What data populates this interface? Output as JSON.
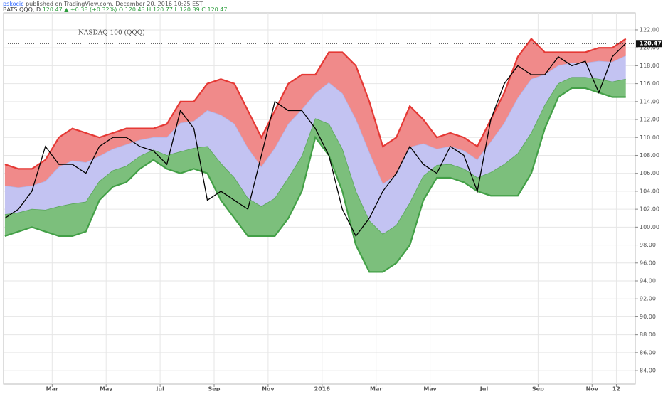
{
  "header": {
    "author": "pskocic",
    "published": "published on TradingView.com, December 20, 2016 10:25 EST",
    "symbol": "BATS:QQQ, D",
    "quote": "120.47 ▲ +0.38 (+0.32%)",
    "ohlc": "O:120.43 H:120.77 L:120.39 C:120.47"
  },
  "chart_data": {
    "type": "band-line",
    "title": "NASDAQ 100 (QQQ)",
    "x": [
      0.25,
      0.75,
      1.25,
      1.75,
      2.25,
      2.75,
      3.25,
      3.75,
      4.25,
      4.75,
      5.25,
      5.75,
      6.25,
      6.75,
      7.25,
      7.75,
      8.25,
      8.75,
      9.25,
      9.75,
      10.25,
      10.75,
      11.25,
      11.75,
      12.25,
      12.75,
      13.25,
      13.75,
      14.25,
      14.75,
      15.25,
      15.75,
      16.25,
      16.75,
      17.25,
      17.75,
      18.25,
      18.75,
      19.25,
      19.75,
      20.25,
      20.75,
      21.25,
      21.75,
      22.25,
      22.75,
      23.25
    ],
    "series": [
      {
        "color": "#e53935",
        "fill": "#f08a8a",
        "values": [
          107,
          106.5,
          106.5,
          107.5,
          110,
          111,
          110.5,
          110,
          110.5,
          111,
          111,
          111,
          111.5,
          114,
          114,
          116,
          116.5,
          116,
          113,
          110,
          113,
          116,
          117,
          117,
          119.5,
          119.5,
          118,
          114,
          109,
          110,
          113.5,
          112,
          110,
          110.5,
          110,
          109,
          112,
          115,
          119,
          121,
          119.5,
          119.5,
          119.5,
          119.5,
          120,
          120,
          121
        ]
      },
      {
        "color": "#b3b3e6",
        "fill": "#c3c3f2",
        "values": [
          104.6,
          104.4,
          104.6,
          105.1,
          106.7,
          107.4,
          107.2,
          107.9,
          108.7,
          109.2,
          109.7,
          110,
          110,
          111.6,
          111.8,
          113,
          112.5,
          111.5,
          108.8,
          106.7,
          108.8,
          111.5,
          113.1,
          114.9,
          116.1,
          114.9,
          112,
          108.3,
          104.8,
          105.8,
          108.9,
          109.3,
          108.7,
          109,
          108.5,
          107.5,
          109.5,
          111.6,
          114.4,
          116.5,
          117,
          118,
          118.3,
          118.3,
          118.5,
          118.4,
          119.1
        ]
      },
      {
        "color": "#5aa65a",
        "fill": "#7cbf7c",
        "values": [
          101.4,
          101.6,
          102,
          101.9,
          102.3,
          102.6,
          102.8,
          105.1,
          106.3,
          106.8,
          107.9,
          108.6,
          108,
          108.4,
          108.8,
          109,
          107.1,
          105.5,
          103.2,
          102.3,
          103.2,
          105.5,
          107.9,
          112.1,
          111.5,
          108.7,
          104,
          100.7,
          99.2,
          100.2,
          102.7,
          105.7,
          106.9,
          107,
          106.5,
          105.5,
          106.1,
          107,
          108.2,
          110.5,
          113.6,
          116,
          116.7,
          116.7,
          116.5,
          116.2,
          116.5
        ]
      },
      {
        "color": "#43a047",
        "values": [
          99,
          99.5,
          100,
          99.5,
          99,
          99,
          99.5,
          103,
          104.5,
          105,
          106.5,
          107.5,
          106.5,
          106,
          106.5,
          106,
          103,
          101,
          99,
          99,
          99,
          101,
          104,
          110,
          108,
          104,
          98,
          95,
          95,
          96,
          98,
          103,
          105.5,
          105.5,
          105,
          104,
          103.5,
          103.5,
          103.5,
          106,
          111,
          114.5,
          115.5,
          115.5,
          115,
          114.5,
          114.5
        ]
      },
      {
        "color": "#000000",
        "values": [
          101,
          102,
          104,
          109,
          107,
          107,
          106,
          109,
          110,
          110,
          109,
          108.5,
          107,
          113,
          111,
          103,
          104,
          103,
          102,
          108,
          114,
          113,
          113,
          111,
          108,
          102,
          99,
          101,
          104,
          106,
          109,
          107,
          106,
          109,
          108,
          104,
          112,
          116,
          118,
          117,
          117,
          119,
          118,
          118.5,
          115,
          119,
          120.5
        ]
      }
    ],
    "xlim": [
      0.2,
      23.6
    ],
    "xticks": [
      {
        "value": 2,
        "label": "Mar"
      },
      {
        "value": 4,
        "label": "May"
      },
      {
        "value": 6,
        "label": "Jul"
      },
      {
        "value": 8,
        "label": "Sep"
      },
      {
        "value": 10,
        "label": "Nov"
      },
      {
        "value": 12,
        "label": "2016"
      },
      {
        "value": 14,
        "label": "Mar"
      },
      {
        "value": 16,
        "label": "May"
      },
      {
        "value": 18,
        "label": "Jul"
      },
      {
        "value": 20,
        "label": "Sep"
      },
      {
        "value": 22,
        "label": "Nov"
      },
      {
        "value": 22.9,
        "label": "12"
      }
    ],
    "ylim": [
      82.5,
      123.9
    ],
    "yticks": [
      {
        "value": 84,
        "label": "84.00"
      },
      {
        "value": 86,
        "label": "86.00"
      },
      {
        "value": 88,
        "label": "88.00"
      },
      {
        "value": 90,
        "label": "90.00"
      },
      {
        "value": 92,
        "label": "92.00"
      },
      {
        "value": 94,
        "label": "94.00"
      },
      {
        "value": 96,
        "label": "96.00"
      },
      {
        "value": 98,
        "label": "98.00"
      },
      {
        "value": 100,
        "label": "100.00"
      },
      {
        "value": 102,
        "label": "102.00"
      },
      {
        "value": 104,
        "label": "104.00"
      },
      {
        "value": 106,
        "label": "106.00"
      },
      {
        "value": 108,
        "label": "108.00"
      },
      {
        "value": 110,
        "label": "110.00"
      },
      {
        "value": 112,
        "label": "112.00"
      },
      {
        "value": 114,
        "label": "114.00"
      },
      {
        "value": 116,
        "label": "116.00"
      },
      {
        "value": 118,
        "label": "118.00"
      },
      {
        "value": 120,
        "label": "120.00"
      },
      {
        "value": 122,
        "label": "122.00"
      }
    ],
    "last_price": {
      "value": 120.47,
      "label": "120.47"
    },
    "grid": true
  }
}
